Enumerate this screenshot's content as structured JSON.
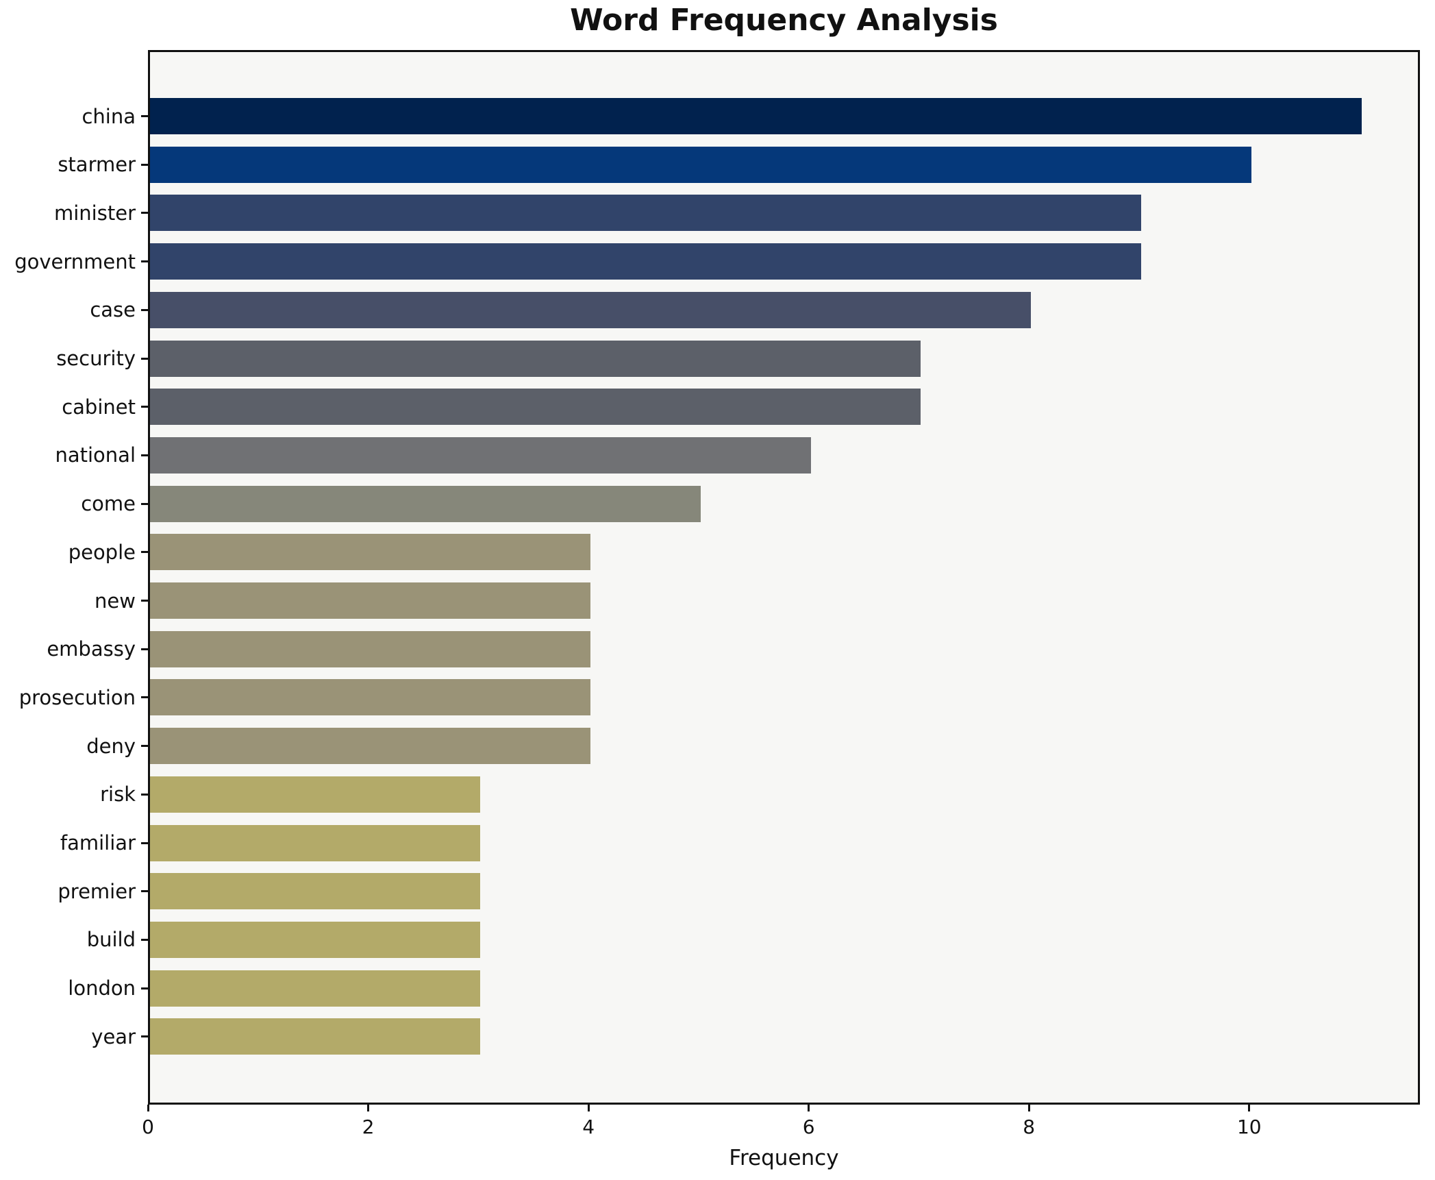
{
  "page": {
    "background": "#ffffff"
  },
  "chart_data": {
    "type": "bar",
    "orientation": "horizontal",
    "title": "Word Frequency Analysis",
    "xlabel": "Frequency",
    "ylabel": "",
    "categories": [
      "china",
      "starmer",
      "minister",
      "government",
      "case",
      "security",
      "cabinet",
      "national",
      "come",
      "people",
      "new",
      "embassy",
      "prosecution",
      "deny",
      "risk",
      "familiar",
      "premier",
      "build",
      "london",
      "year"
    ],
    "values": [
      11,
      10,
      9,
      9,
      8,
      7,
      7,
      6,
      5,
      4,
      4,
      4,
      4,
      4,
      3,
      3,
      3,
      3,
      3,
      3
    ],
    "bar_colors": [
      "#01224e",
      "#05387a",
      "#31446a",
      "#31446a",
      "#474f68",
      "#5c6069",
      "#5c6069",
      "#707174",
      "#86877a",
      "#9a9377",
      "#9a9377",
      "#9a9377",
      "#9a9377",
      "#9a9377",
      "#b3aa69",
      "#b3aa69",
      "#b3aa69",
      "#b3aa69",
      "#b3aa69",
      "#b3aa69"
    ],
    "xticks": [
      0,
      2,
      4,
      6,
      8,
      10
    ],
    "xlim": [
      0,
      11.55
    ],
    "grid": false,
    "legend": null,
    "plot_background": "#f7f7f5",
    "spine_color": "#111111",
    "text_color": "#111111"
  }
}
